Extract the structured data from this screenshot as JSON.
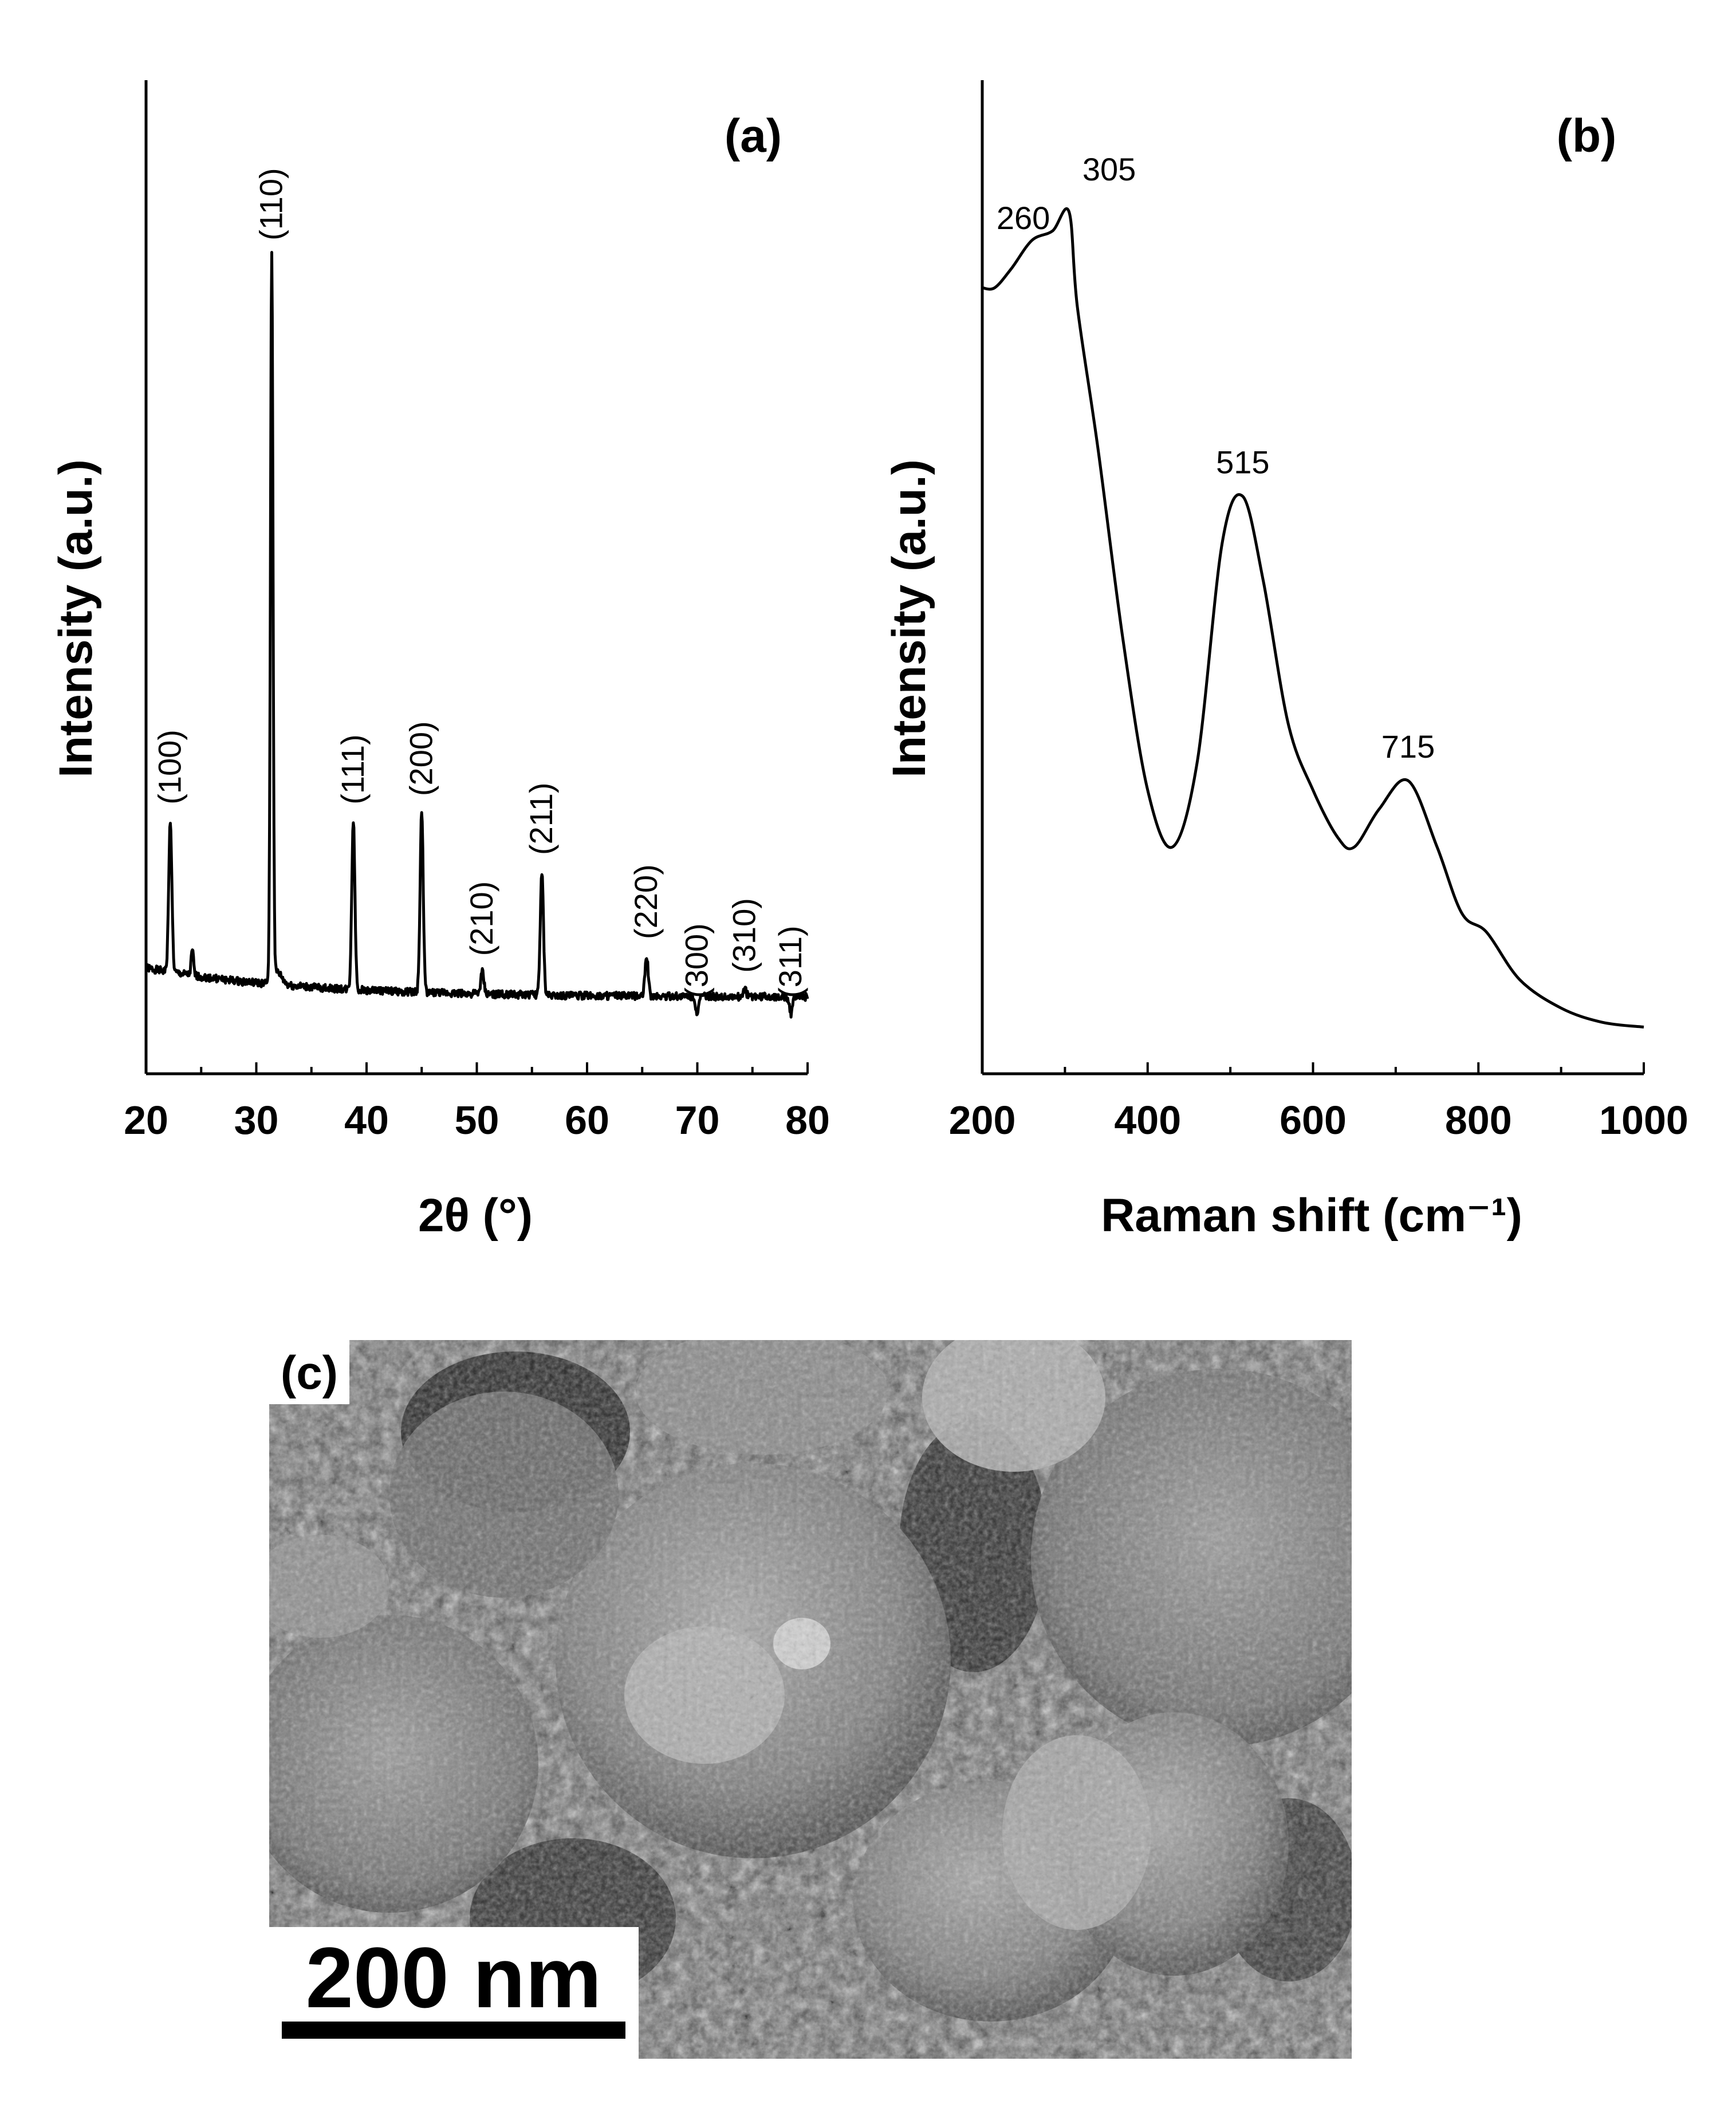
{
  "chart_data": [
    {
      "panel": "(a)",
      "type": "line",
      "xlabel": "2θ (°)",
      "ylabel": "Intensity (a.u.)",
      "xlim": [
        20,
        80
      ],
      "xticks": [
        20,
        30,
        40,
        50,
        60,
        70,
        80
      ],
      "ylim": [
        0,
        100
      ],
      "yticks_shown": false,
      "grid": false,
      "baseline": 5,
      "peaks": [
        {
          "x": 22.2,
          "y": 26,
          "label": "(100)"
        },
        {
          "x": 31.4,
          "y": 93,
          "label": "(110)"
        },
        {
          "x": 38.8,
          "y": 26,
          "label": "(111)"
        },
        {
          "x": 45.0,
          "y": 27,
          "label": "(200)"
        },
        {
          "x": 50.5,
          "y": 8,
          "label": "(210)"
        },
        {
          "x": 55.9,
          "y": 20,
          "label": "(211)"
        },
        {
          "x": 65.4,
          "y": 10,
          "label": "(220)"
        },
        {
          "x": 70.0,
          "y": 3,
          "label": "(300)"
        },
        {
          "x": 74.3,
          "y": 6,
          "label": "(310)"
        },
        {
          "x": 78.5,
          "y": 3,
          "label": "(311)"
        }
      ]
    },
    {
      "panel": "(b)",
      "type": "line",
      "xlabel": "Raman shift (cm⁻¹)",
      "ylabel": "Intensity (a.u.)",
      "xlim": [
        200,
        1000
      ],
      "xticks": [
        200,
        400,
        600,
        800,
        1000
      ],
      "ylim": [
        0,
        100
      ],
      "yticks_shown": false,
      "grid": false,
      "x": [
        200,
        215,
        235,
        260,
        285,
        305,
        315,
        340,
        370,
        400,
        430,
        460,
        490,
        515,
        540,
        570,
        600,
        630,
        650,
        680,
        715,
        750,
        780,
        810,
        850,
        900,
        950,
        1000
      ],
      "y": [
        79,
        79,
        81,
        84,
        85,
        87,
        77,
        62,
        42,
        26,
        20,
        29,
        52,
        57,
        48,
        33,
        26,
        21,
        20,
        24,
        27,
        20,
        13,
        11,
        6,
        3,
        1.5,
        1
      ],
      "peak_labels": [
        {
          "x": 260,
          "text": "260"
        },
        {
          "x": 305,
          "text": "305"
        },
        {
          "x": 515,
          "text": "515"
        },
        {
          "x": 715,
          "text": "715"
        }
      ]
    }
  ],
  "sem_image": {
    "panel_label": "(c)",
    "scale_bar_label": "200 nm"
  }
}
